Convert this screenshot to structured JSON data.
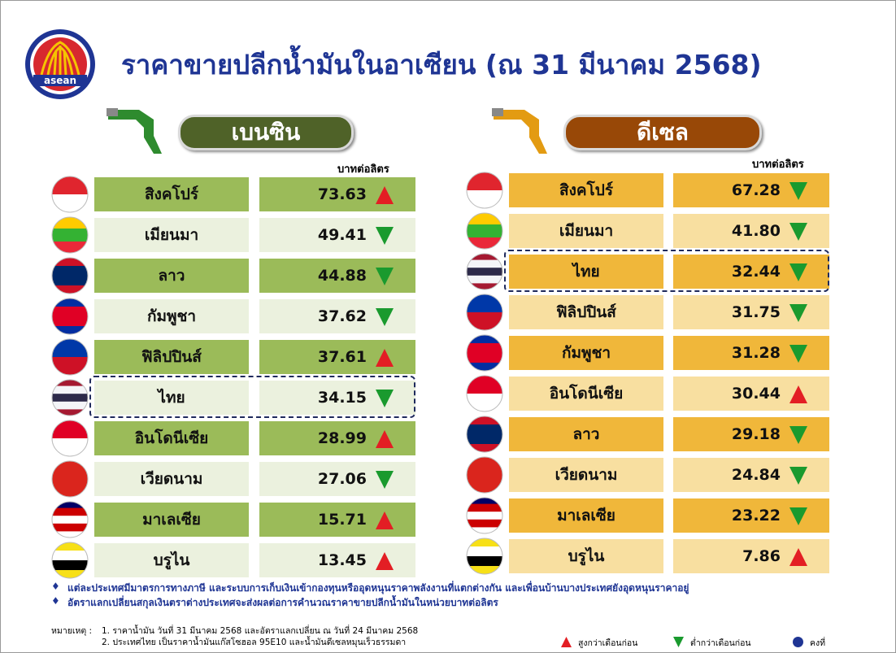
{
  "header": {
    "logo_text": "asean",
    "title": "ราคาขายปลีกน้ำมันในอาเซียน (ณ 31 มีนาคม 2568)"
  },
  "sections": [
    {
      "label": "เบนซิน",
      "unit": "บาทต่อลิตร",
      "badge_color": "#4f6228",
      "dark": "#9bbb59",
      "light": "#ebf1de",
      "rows": [
        {
          "country": "สิงคโปร์",
          "price": "73.63",
          "trend": "up",
          "flag": [
            "#e0252e",
            "#ffffff"
          ]
        },
        {
          "country": "เมียนมา",
          "price": "49.41",
          "trend": "down",
          "flag": [
            "#fecb00",
            "#34b233",
            "#ea2839"
          ]
        },
        {
          "country": "ลาว",
          "price": "44.88",
          "trend": "down",
          "flag": [
            "#ce1126",
            "#002868",
            "#002868",
            "#ce1126"
          ]
        },
        {
          "country": "กัมพูชา",
          "price": "37.62",
          "trend": "down",
          "flag": [
            "#032ea1",
            "#e00025",
            "#e00025",
            "#032ea1"
          ]
        },
        {
          "country": "ฟิลิปปินส์",
          "price": "37.61",
          "trend": "up",
          "flag": [
            "#0038a8",
            "#ce1126"
          ]
        },
        {
          "country": "ไทย",
          "price": "34.15",
          "trend": "down",
          "highlight": true,
          "flag": [
            "#a51931",
            "#f4f5f8",
            "#2d2a4a",
            "#f4f5f8",
            "#a51931"
          ]
        },
        {
          "country": "อินโดนีเซีย",
          "price": "28.99",
          "trend": "up",
          "flag": [
            "#e00025",
            "#ffffff"
          ]
        },
        {
          "country": "เวียดนาม",
          "price": "27.06",
          "trend": "down",
          "flag": [
            "#da251d"
          ]
        },
        {
          "country": "มาเลเซีย",
          "price": "15.71",
          "trend": "up",
          "flag": [
            "#010066",
            "#cc0001",
            "#ffffff",
            "#cc0001",
            "#ffffff"
          ]
        },
        {
          "country": "บรูไน",
          "price": "13.45",
          "trend": "up",
          "flag": [
            "#f7e017",
            "#ffffff",
            "#000000",
            "#f7e017"
          ]
        }
      ]
    },
    {
      "label": "ดีเซล",
      "unit": "บาทต่อลิตร",
      "badge_color": "#984807",
      "dark": "#f0b73a",
      "light": "#f8dfa0",
      "rows": [
        {
          "country": "สิงคโปร์",
          "price": "67.28",
          "trend": "down",
          "flag": [
            "#e0252e",
            "#ffffff"
          ]
        },
        {
          "country": "เมียนมา",
          "price": "41.80",
          "trend": "down",
          "flag": [
            "#fecb00",
            "#34b233",
            "#ea2839"
          ]
        },
        {
          "country": "ไทย",
          "price": "32.44",
          "trend": "down",
          "highlight": true,
          "flag": [
            "#a51931",
            "#f4f5f8",
            "#2d2a4a",
            "#f4f5f8",
            "#a51931"
          ]
        },
        {
          "country": "ฟิลิปปินส์",
          "price": "31.75",
          "trend": "down",
          "flag": [
            "#0038a8",
            "#ce1126"
          ]
        },
        {
          "country": "กัมพูชา",
          "price": "31.28",
          "trend": "down",
          "flag": [
            "#032ea1",
            "#e00025",
            "#e00025",
            "#032ea1"
          ]
        },
        {
          "country": "อินโดนีเซีย",
          "price": "30.44",
          "trend": "up",
          "flag": [
            "#e00025",
            "#ffffff"
          ]
        },
        {
          "country": "ลาว",
          "price": "29.18",
          "trend": "down",
          "flag": [
            "#ce1126",
            "#002868",
            "#002868",
            "#ce1126"
          ]
        },
        {
          "country": "เวียดนาม",
          "price": "24.84",
          "trend": "down",
          "flag": [
            "#da251d"
          ]
        },
        {
          "country": "มาเลเซีย",
          "price": "23.22",
          "trend": "down",
          "flag": [
            "#010066",
            "#cc0001",
            "#ffffff",
            "#cc0001",
            "#ffffff"
          ]
        },
        {
          "country": "บรูไน",
          "price": "7.86",
          "trend": "up",
          "flag": [
            "#f7e017",
            "#ffffff",
            "#000000",
            "#f7e017"
          ]
        }
      ]
    }
  ],
  "notes": [
    "แต่ละประเทศมีมาตรการทางภาษี และระบบการเก็บเงินเข้ากองทุนหรืออุดหนุนราคาพลังงานที่แตกต่างกัน และเพื่อนบ้านบางประเทศยังอุดหนุนราคาอยู่",
    "อัตราแลกเปลี่ยนสกุลเงินตราต่างประเทศจะส่งผลต่อการคำนวณราคาขายปลีกน้ำมันในหน่วยบาทต่อลิตร"
  ],
  "remark": {
    "label": "หมายเหตุ :",
    "lines": [
      "1. ราคาน้ำมัน วันที่ 31 มีนาคม 2568 และอัตราแลกเปลี่ยน ณ วันที่ 24 มีนาคม 2568",
      "2. ประเทศไทย เป็นราคาน้ำมันแก๊สโซฮอล 95E10 และน้ำมันดีเซลหมุนเร็วธรรมดา"
    ]
  },
  "legend": [
    {
      "label": "สูงกว่าเดือนก่อน",
      "symbol": "up"
    },
    {
      "label": "ต่ำกว่าเดือนก่อน",
      "symbol": "down"
    },
    {
      "label": "คงที่",
      "symbol": "same"
    }
  ]
}
